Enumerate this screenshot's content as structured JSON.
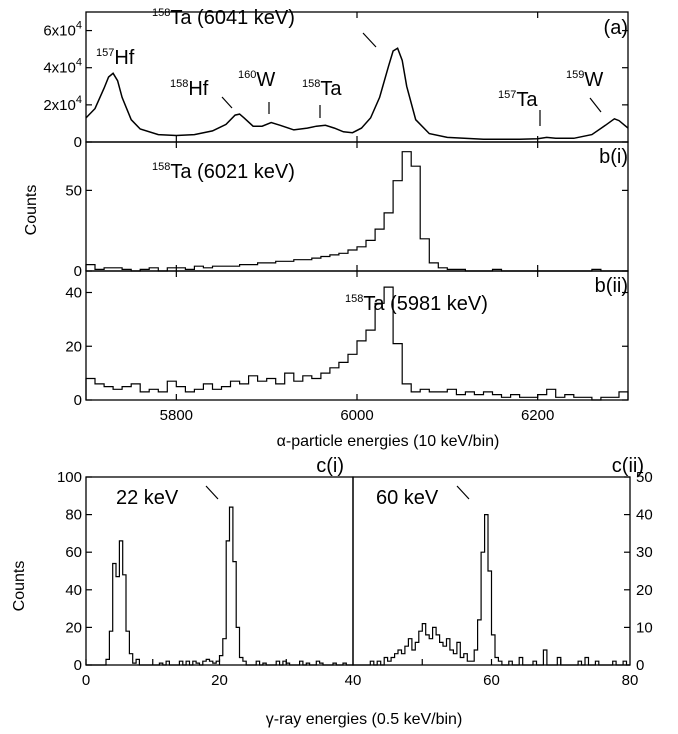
{
  "chart_data": [
    {
      "panel": "(a)",
      "type": "line",
      "xlim": [
        5700,
        6300
      ],
      "ylim": [
        0,
        70000
      ],
      "yticks": [
        {
          "v": 0,
          "label": "0"
        },
        {
          "v": 20000,
          "label": "2x10",
          "exp": "4"
        },
        {
          "v": 40000,
          "label": "4x10",
          "exp": "4"
        },
        {
          "v": 60000,
          "label": "6x10",
          "exp": "4"
        }
      ],
      "x": [
        5700,
        5710,
        5720,
        5725,
        5730,
        5735,
        5740,
        5750,
        5760,
        5780,
        5800,
        5820,
        5840,
        5855,
        5865,
        5870,
        5875,
        5885,
        5895,
        5905,
        5915,
        5930,
        5945,
        5955,
        5965,
        5975,
        5985,
        5995,
        6005,
        6015,
        6025,
        6035,
        6040,
        6045,
        6050,
        6055,
        6065,
        6080,
        6100,
        6140,
        6180,
        6200,
        6210,
        6220,
        6240,
        6260,
        6275,
        6285,
        6290,
        6300
      ],
      "values": [
        13000,
        18000,
        29000,
        35000,
        37000,
        33000,
        24000,
        12000,
        7000,
        4000,
        3500,
        4000,
        6000,
        9500,
        14500,
        15000,
        13000,
        8500,
        8500,
        10500,
        9000,
        6500,
        7500,
        8500,
        9000,
        7500,
        5500,
        5000,
        7500,
        13000,
        24000,
        41000,
        49000,
        50500,
        44000,
        30000,
        12000,
        4500,
        2500,
        1500,
        1500,
        1800,
        2500,
        2000,
        2000,
        4000,
        9000,
        12500,
        11500,
        7500
      ]
    },
    {
      "panel": "b(i)",
      "type": "histogram",
      "xlim": [
        5700,
        6300
      ],
      "ylim": [
        0,
        80
      ],
      "ylabel": "Counts",
      "yticks": [
        0,
        50
      ],
      "bin_start": 5700,
      "bin_width": 10,
      "values": [
        4,
        1,
        2,
        2,
        1,
        0,
        1,
        2,
        0,
        2,
        2,
        1,
        3,
        2,
        3,
        3,
        3,
        4,
        4,
        5,
        5,
        6,
        6,
        7,
        7,
        8,
        9,
        10,
        11,
        13,
        15,
        19,
        26,
        36,
        56,
        74,
        65,
        20,
        5,
        2,
        1,
        1,
        0,
        0,
        0,
        1,
        0,
        0,
        0,
        0,
        0,
        0,
        0,
        0,
        0,
        0,
        1,
        0,
        0,
        0
      ]
    },
    {
      "panel": "b(ii)",
      "type": "histogram",
      "xlim": [
        5700,
        6300
      ],
      "ylim": [
        0,
        48
      ],
      "yticks": [
        0,
        20,
        40
      ],
      "xticks": [
        5800,
        6000,
        6200
      ],
      "xlabel": "α-particle energies (10 keV/bin)",
      "bin_start": 5700,
      "bin_width": 10,
      "values": [
        8,
        6,
        5,
        4,
        5,
        6,
        3,
        4,
        3,
        7,
        5,
        3,
        4,
        6,
        4,
        5,
        7,
        6,
        9,
        7,
        8,
        6,
        10,
        7,
        9,
        8,
        10,
        12,
        14,
        17,
        22,
        26,
        36,
        42,
        21,
        6,
        3,
        4,
        3,
        3,
        4,
        2,
        3,
        2,
        3,
        2,
        1,
        2,
        1,
        1,
        2,
        4,
        1,
        2,
        1,
        1,
        0,
        1,
        1,
        3
      ]
    },
    {
      "panel": "c(i)",
      "type": "histogram",
      "xlim": [
        0,
        40
      ],
      "ylim": [
        0,
        100
      ],
      "ylabel": "Counts",
      "yticks": [
        0,
        20,
        40,
        60,
        80,
        100
      ],
      "xticks": [
        0,
        20,
        40
      ],
      "bin_start": 0,
      "bin_width": 0.5,
      "values": [
        0,
        0,
        0,
        0,
        0,
        0,
        3,
        18,
        54,
        47,
        66,
        48,
        18,
        6,
        1,
        3,
        0,
        0,
        0,
        0,
        0,
        0,
        1,
        0,
        2,
        0,
        0,
        0,
        2,
        0,
        2,
        0,
        2,
        1,
        0,
        2,
        3,
        2,
        1,
        2,
        5,
        14,
        66,
        84,
        55,
        20,
        4,
        2,
        0,
        0,
        0,
        2,
        0,
        1,
        0,
        0,
        0,
        2,
        0,
        2,
        1,
        0,
        0,
        0,
        2,
        0,
        1,
        0,
        0,
        2,
        1,
        0,
        0,
        0,
        1,
        0,
        0,
        1,
        0,
        0
      ]
    },
    {
      "panel": "c(ii)",
      "type": "histogram",
      "xlim": [
        40,
        80
      ],
      "ylim": [
        0,
        50
      ],
      "yticks": [
        0,
        10,
        20,
        30,
        40,
        50
      ],
      "xticks": [
        40,
        60,
        80
      ],
      "bin_start": 40,
      "bin_width": 0.5,
      "values": [
        0,
        0,
        0,
        0,
        0,
        1,
        0,
        1,
        0,
        2,
        1,
        2,
        3,
        4,
        3,
        5,
        7,
        4,
        6,
        9,
        11,
        8,
        7,
        10,
        8,
        6,
        5,
        7,
        4,
        3,
        6,
        2,
        3,
        1,
        1,
        4,
        12,
        30,
        40,
        25,
        8,
        2,
        1,
        0,
        0,
        1,
        0,
        0,
        2,
        0,
        0,
        0,
        1,
        0,
        0,
        4,
        0,
        0,
        0,
        2,
        0,
        0,
        0,
        0,
        0,
        1,
        0,
        2,
        0,
        0,
        1,
        0,
        0,
        0,
        0,
        1,
        0,
        0,
        1,
        0
      ]
    }
  ],
  "shared_xlabel": "γ-ray energies (0.5 keV/bin)",
  "panel_labels": {
    "a": "(a)",
    "bi": "b(i)",
    "bii": "b(ii)",
    "ci": "c(i)",
    "cii": "c(ii)"
  },
  "annotations": {
    "a_hf157": {
      "mass": "157",
      "sym": "Hf"
    },
    "a_ta158_main": {
      "mass": "158",
      "sym": "Ta (6041 keV)"
    },
    "a_hf158": {
      "mass": "158",
      "sym": "Hf"
    },
    "a_w160": {
      "mass": "160",
      "sym": "W"
    },
    "a_ta158": {
      "mass": "158",
      "sym": "Ta"
    },
    "a_ta157": {
      "mass": "157",
      "sym": "Ta"
    },
    "a_w159": {
      "mass": "159",
      "sym": "W"
    },
    "bi": {
      "mass": "158",
      "sym": "Ta (6021 keV)"
    },
    "bii": {
      "mass": "158",
      "sym": "Ta (5981 keV)"
    },
    "ci": "22 keV",
    "cii": "60 keV"
  }
}
